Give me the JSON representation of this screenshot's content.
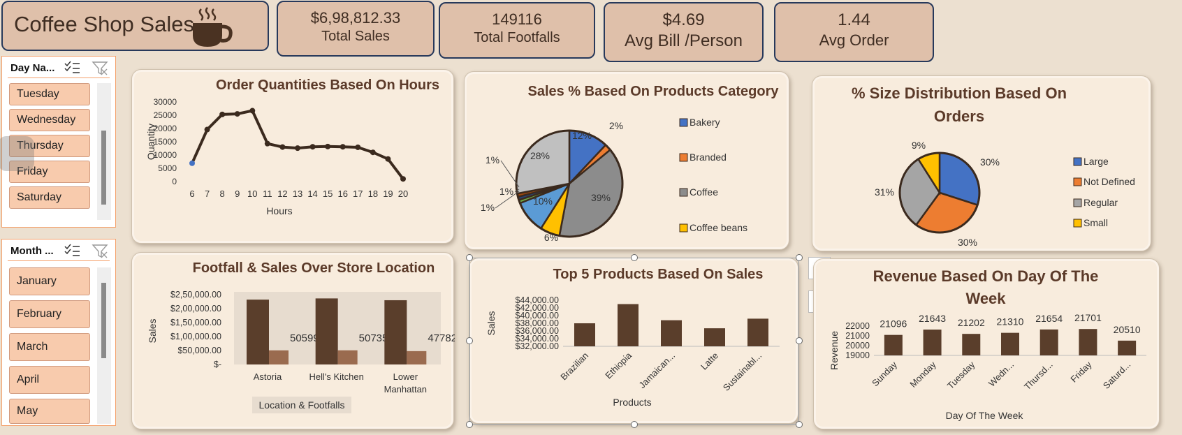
{
  "header": {
    "title": "Coffee Shop Sales",
    "icon": "coffee-cup-icon"
  },
  "kpis": [
    {
      "value": "$6,98,812.33",
      "label": "Total Sales"
    },
    {
      "value": "149116",
      "label": "Total Footfalls"
    },
    {
      "value": "$4.69",
      "label": "Avg Bill /Person"
    },
    {
      "value": "1.44",
      "label": "Avg Order"
    }
  ],
  "slicers": {
    "day": {
      "title": "Day Na...",
      "items": [
        "Tuesday",
        "Wednesday",
        "Thursday",
        "Friday",
        "Saturday"
      ]
    },
    "month": {
      "title": "Month ...",
      "items": [
        "January",
        "February",
        "March",
        "April",
        "May"
      ]
    }
  },
  "colors": {
    "brown": "#5a3e2b",
    "light_brown": "#9a6b4f",
    "blue": "#4472c4",
    "orange": "#ed7d31",
    "gray": "#a5a5a5",
    "yellow": "#ffc000",
    "dark_gray": "#8c8c8c",
    "light_gray": "#c0c0c0"
  },
  "chart_data": [
    {
      "type": "line",
      "title": "Order Quantities Based On Hours",
      "xlabel": "Hours",
      "ylabel": "Quantity",
      "x": [
        6,
        7,
        8,
        9,
        10,
        11,
        12,
        13,
        14,
        15,
        16,
        17,
        18,
        19,
        20
      ],
      "values": [
        6900,
        19600,
        25300,
        25500,
        26700,
        14300,
        13000,
        12600,
        13100,
        13200,
        13100,
        12900,
        11000,
        8500,
        1000
      ],
      "ylim": [
        0,
        30000
      ],
      "yticks": [
        "0",
        "5000",
        "10000",
        "15000",
        "20000",
        "25000",
        "30000"
      ]
    },
    {
      "type": "pie",
      "title": "Sales % Based On Products Category",
      "slices": [
        {
          "name": "Bakery",
          "value": 12,
          "label": "12%",
          "color": "#4472c4"
        },
        {
          "name": "Branded",
          "value": 2,
          "label": "2%",
          "color": "#ed7d31"
        },
        {
          "name": "Coffee",
          "value": 39,
          "label": "39%",
          "color": "#8c8c8c"
        },
        {
          "name": "Coffee beans",
          "value": 6,
          "label": "6%",
          "color": "#ffc000"
        },
        {
          "name": "",
          "value": 10,
          "label": "10%",
          "color": "#5b9bd5"
        },
        {
          "name": "",
          "value": 1,
          "label": "1%",
          "color": "#70ad47"
        },
        {
          "name": "",
          "value": 1,
          "label": "1%",
          "color": "#264478"
        },
        {
          "name": "",
          "value": 1,
          "label": "1%",
          "color": "#9e480e"
        },
        {
          "name": "",
          "value": 28,
          "label": "28%",
          "color": "#c0c0c0"
        }
      ],
      "legend": [
        "Bakery",
        "Branded",
        "Coffee",
        "Coffee beans"
      ]
    },
    {
      "type": "pie",
      "title": "% Size Distribution Based On Orders",
      "slices": [
        {
          "name": "Large",
          "value": 30,
          "label": "30%",
          "color": "#4472c4"
        },
        {
          "name": "Not Defined",
          "value": 30,
          "label": "30%",
          "color": "#ed7d31"
        },
        {
          "name": "Regular",
          "value": 31,
          "label": "31%",
          "color": "#a5a5a5"
        },
        {
          "name": "Small",
          "value": 9,
          "label": "9%",
          "color": "#ffc000"
        }
      ],
      "legend": [
        "Large",
        "Not Defined",
        "Regular",
        "Small"
      ]
    },
    {
      "type": "bar",
      "title": "Footfall & Sales Over Store Location",
      "xlabel": "Location & Footfalls",
      "ylabel": "Sales",
      "categories": [
        "Astoria",
        "Hell's Kitchen",
        "Lower Manhattan"
      ],
      "series": [
        {
          "values": [
            232243.91,
            236511.17,
            230057.25
          ]
        },
        {
          "values": [
            50599,
            50735,
            47782
          ]
        }
      ],
      "ylim": [
        0,
        250000
      ],
      "yticks": [
        "$-",
        "$50,000.00",
        "$1,00,000.00",
        "$1,50,000.00",
        "$2,00,000.00",
        "$2,50,000.00"
      ],
      "data_labels": [
        "50599",
        "50735",
        "47782"
      ]
    },
    {
      "type": "bar",
      "title": "Top 5 Products Based On Sales",
      "xlabel": "Products",
      "ylabel": "Sales",
      "categories": [
        "Brazilian",
        "Ethiopia",
        "Jamaican...",
        "Latte",
        "Sustainabl..."
      ],
      "values": [
        38000,
        43000,
        38800,
        36700,
        39200
      ],
      "ylim": [
        32000,
        44000
      ],
      "yticks": [
        "$32,000.00",
        "$34,000.00",
        "$36,000.00",
        "$38,000.00",
        "$40,000.00",
        "$42,000.00",
        "$44,000.00"
      ]
    },
    {
      "type": "bar",
      "title": "Revenue Based On Day Of The Week",
      "xlabel": "Day Of The Week",
      "ylabel": "Revenue",
      "categories": [
        "Sunday",
        "Monday",
        "Tuesday",
        "Wedn...",
        "Thursd...",
        "Friday",
        "Saturd..."
      ],
      "values": [
        21096,
        21643,
        21202,
        21310,
        21654,
        21701,
        20510
      ],
      "data_labels": [
        "21096",
        "21643",
        "21202",
        "21310",
        "21654",
        "21701",
        "20510"
      ],
      "ylim": [
        19000,
        22000
      ],
      "yticks": [
        "19000",
        "20000",
        "21000",
        "22000"
      ]
    }
  ]
}
